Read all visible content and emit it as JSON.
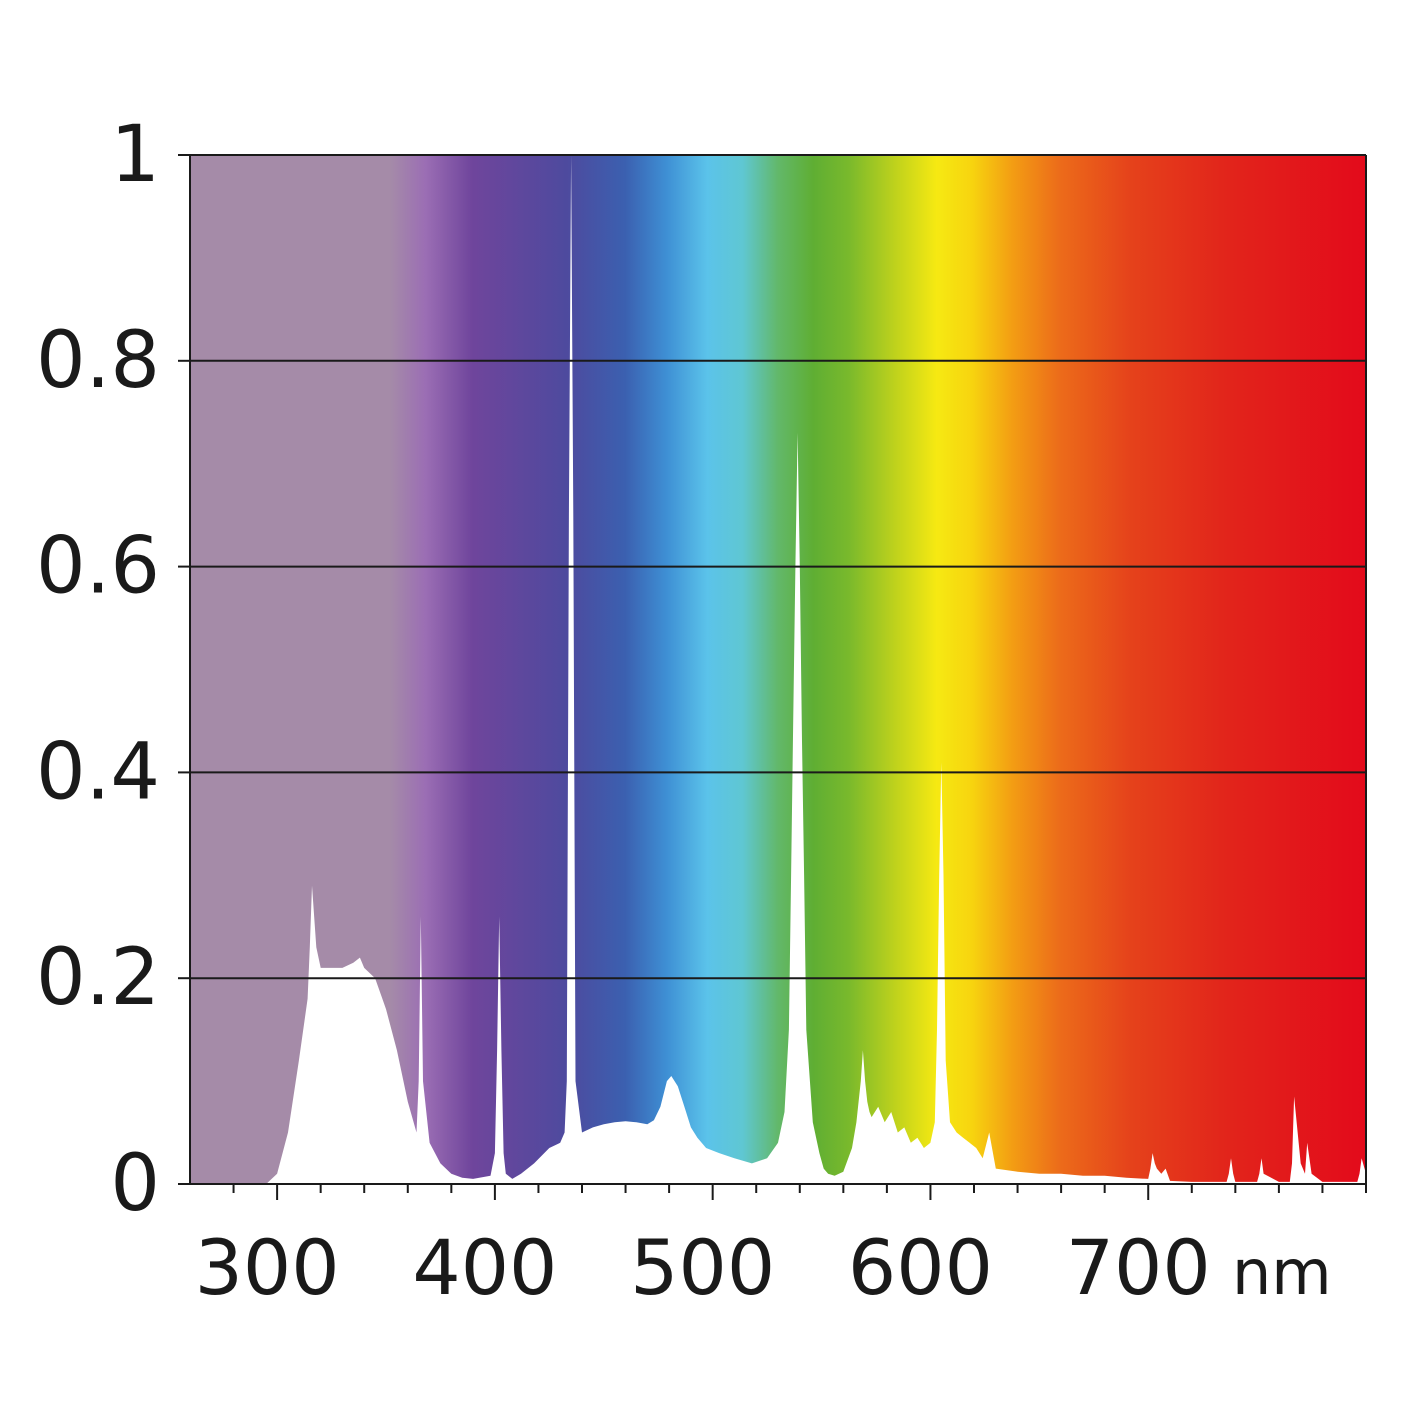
{
  "chart_data": {
    "type": "area",
    "title": "",
    "xlabel": "",
    "ylabel": "",
    "x_unit": "nm",
    "xlim": [
      260,
      800
    ],
    "ylim": [
      0,
      1
    ],
    "x_ticks": [
      300,
      400,
      500,
      600,
      700
    ],
    "x_tick_labels": [
      "300",
      "400",
      "500",
      "600",
      "700"
    ],
    "y_ticks": [
      0,
      0.2,
      0.4,
      0.6,
      0.8,
      1
    ],
    "y_tick_labels": [
      "0",
      "0.2",
      "0.4",
      "0.6",
      "0.8",
      "1"
    ],
    "grid": "horizontal",
    "legend": "none",
    "background": "visible spectrum gradient",
    "series": [
      {
        "x": [
          260,
          295,
          300,
          305,
          310,
          314,
          315,
          316,
          318,
          320,
          325,
          330,
          335,
          338,
          340,
          345,
          350,
          355,
          360,
          364,
          365,
          366,
          367,
          370,
          375,
          380,
          385,
          390,
          398,
          400,
          401,
          402,
          403,
          404,
          405,
          408,
          412,
          418,
          425,
          430,
          432,
          433,
          434,
          435,
          436,
          437,
          440,
          445,
          450,
          455,
          460,
          465,
          470,
          473,
          476,
          479,
          481,
          484,
          487,
          490,
          493,
          497,
          503,
          510,
          518,
          525,
          530,
          533,
          535,
          536,
          537,
          538,
          539,
          540,
          541,
          542,
          543,
          546,
          549,
          551,
          553,
          556,
          560,
          564,
          566,
          568,
          569,
          570,
          571,
          572,
          573,
          576,
          579,
          582,
          585,
          588,
          591,
          594,
          597,
          600,
          602,
          603,
          604,
          605,
          606,
          607,
          609,
          612,
          615,
          618,
          621,
          624,
          627,
          630,
          640,
          650,
          660,
          670,
          680,
          690,
          700,
          701,
          702,
          703,
          704,
          706,
          708,
          710,
          720,
          730,
          736,
          737,
          738,
          739,
          740,
          745,
          750,
          751,
          752,
          753,
          760,
          765,
          766,
          767,
          770,
          772,
          773,
          775,
          780,
          790,
          796,
          797,
          798,
          800
        ],
        "values": [
          0,
          0,
          0.01,
          0.05,
          0.12,
          0.18,
          0.23,
          0.29,
          0.23,
          0.21,
          0.21,
          0.21,
          0.215,
          0.22,
          0.21,
          0.2,
          0.17,
          0.13,
          0.08,
          0.05,
          0.1,
          0.26,
          0.1,
          0.04,
          0.02,
          0.01,
          0.006,
          0.005,
          0.008,
          0.03,
          0.13,
          0.26,
          0.13,
          0.03,
          0.01,
          0.005,
          0.01,
          0.02,
          0.035,
          0.04,
          0.05,
          0.1,
          0.65,
          1.0,
          0.65,
          0.1,
          0.05,
          0.055,
          0.058,
          0.06,
          0.061,
          0.06,
          0.058,
          0.062,
          0.075,
          0.1,
          0.105,
          0.095,
          0.075,
          0.055,
          0.045,
          0.035,
          0.03,
          0.025,
          0.02,
          0.025,
          0.04,
          0.07,
          0.15,
          0.3,
          0.45,
          0.6,
          0.73,
          0.6,
          0.43,
          0.3,
          0.15,
          0.06,
          0.03,
          0.015,
          0.01,
          0.008,
          0.012,
          0.035,
          0.06,
          0.1,
          0.13,
          0.1,
          0.08,
          0.07,
          0.065,
          0.075,
          0.06,
          0.07,
          0.05,
          0.055,
          0.04,
          0.045,
          0.035,
          0.04,
          0.06,
          0.15,
          0.3,
          0.41,
          0.3,
          0.12,
          0.06,
          0.05,
          0.045,
          0.04,
          0.035,
          0.025,
          0.05,
          0.015,
          0.012,
          0.01,
          0.01,
          0.008,
          0.008,
          0.006,
          0.005,
          0.015,
          0.03,
          0.02,
          0.015,
          0.01,
          0.015,
          0.003,
          0.002,
          0.002,
          0.002,
          0.01,
          0.025,
          0.01,
          0.002,
          0.002,
          0.002,
          0.01,
          0.025,
          0.01,
          0.002,
          0.002,
          0.02,
          0.085,
          0.02,
          0.01,
          0.04,
          0.01,
          0.002,
          0.002,
          0.002,
          0.01,
          0.025,
          0.01
        ]
      }
    ]
  }
}
